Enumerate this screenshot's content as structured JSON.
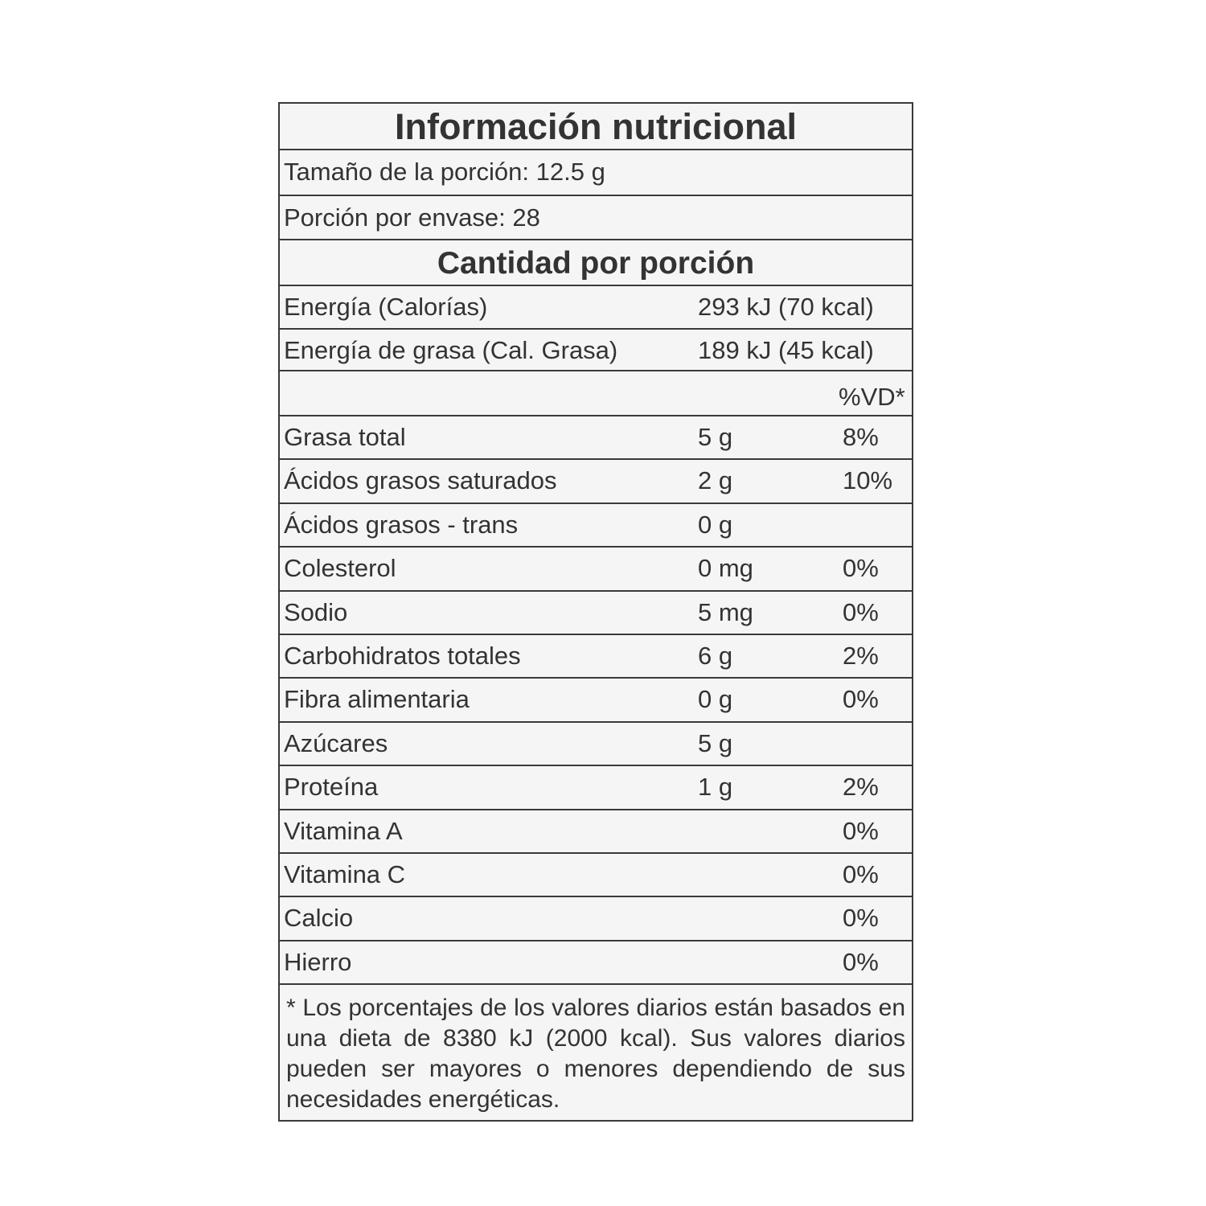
{
  "title": "Información nutricional",
  "serving_size": "Tamaño de la porción: 12.5 g",
  "servings_per_container": "Porción por envase: 28",
  "amount_per_serving": "Cantidad por porción",
  "energy": [
    {
      "label": "Energía (Calorías)",
      "value": "293 kJ (70 kcal)"
    },
    {
      "label": "Energía de grasa (Cal. Grasa)",
      "value": "189 kJ (45 kcal)"
    }
  ],
  "dv_header": "%VD*",
  "nutrients": [
    {
      "label": "Grasa total",
      "amount": "5 g",
      "dv": "8%"
    },
    {
      "label": "Ácidos grasos saturados",
      "amount": "2 g",
      "dv": "10%"
    },
    {
      "label": "Ácidos grasos - trans",
      "amount": "0 g",
      "dv": ""
    },
    {
      "label": "Colesterol",
      "amount": "0 mg",
      "dv": "0%"
    },
    {
      "label": "Sodio",
      "amount": "5 mg",
      "dv": "0%"
    },
    {
      "label": "Carbohidratos totales",
      "amount": "6 g",
      "dv": "2%"
    },
    {
      "label": "Fibra alimentaria",
      "amount": "0 g",
      "dv": "0%"
    },
    {
      "label": "Azúcares",
      "amount": "5 g",
      "dv": ""
    },
    {
      "label": "Proteína",
      "amount": "1 g",
      "dv": "2%"
    },
    {
      "label": "Vitamina A",
      "amount": "",
      "dv": "0%"
    },
    {
      "label": "Vitamina C",
      "amount": "",
      "dv": "0%"
    },
    {
      "label": "Calcio",
      "amount": "",
      "dv": "0%"
    },
    {
      "label": "Hierro",
      "amount": "",
      "dv": "0%"
    }
  ],
  "footnote": "* Los porcentajes de los valores diarios están basados en una dieta de 8380 kJ (2000 kcal). Sus valores diarios pueden ser mayores o menores dependiendo de sus necesidades energéticas."
}
